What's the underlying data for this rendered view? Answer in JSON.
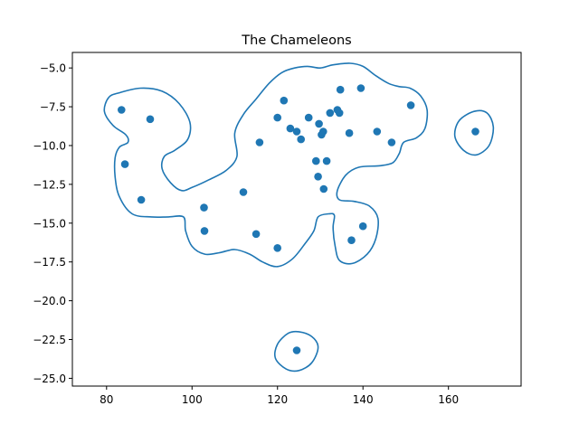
{
  "chart_data": {
    "type": "scatter",
    "title": "The Chameleons",
    "xlabel": "",
    "ylabel": "",
    "xlim": [
      72,
      177
    ],
    "ylim": [
      -25.5,
      -4.0
    ],
    "xticks": [
      80,
      100,
      120,
      140,
      160
    ],
    "yticks": [
      -5.0,
      -7.5,
      -10.0,
      -12.5,
      -15.0,
      -17.5,
      -20.0,
      -22.5,
      -25.0
    ],
    "xtick_labels": [
      "80",
      "100",
      "120",
      "140",
      "160"
    ],
    "ytick_labels": [
      "−5.0",
      "−7.5",
      "−10.0",
      "−12.5",
      "−15.0",
      "−17.5",
      "−20.0",
      "−22.5",
      "−25.0"
    ],
    "grid": false,
    "colors": {
      "points": "#1f77b4",
      "contour": "#1f77b4"
    },
    "points": [
      {
        "x": 83.5,
        "y": -7.7
      },
      {
        "x": 90.2,
        "y": -8.3
      },
      {
        "x": 84.3,
        "y": -11.2
      },
      {
        "x": 88.1,
        "y": -13.5
      },
      {
        "x": 102.8,
        "y": -14.0
      },
      {
        "x": 102.9,
        "y": -15.5
      },
      {
        "x": 112.0,
        "y": -13.0
      },
      {
        "x": 115.0,
        "y": -15.7
      },
      {
        "x": 120.0,
        "y": -16.6
      },
      {
        "x": 115.8,
        "y": -9.8
      },
      {
        "x": 121.5,
        "y": -7.1
      },
      {
        "x": 120.0,
        "y": -8.2
      },
      {
        "x": 123.0,
        "y": -8.9
      },
      {
        "x": 124.5,
        "y": -9.1
      },
      {
        "x": 125.5,
        "y": -9.6
      },
      {
        "x": 127.3,
        "y": -8.2
      },
      {
        "x": 129.0,
        "y": -11.0
      },
      {
        "x": 129.5,
        "y": -12.0
      },
      {
        "x": 129.7,
        "y": -8.6
      },
      {
        "x": 130.3,
        "y": -9.3
      },
      {
        "x": 130.7,
        "y": -9.1
      },
      {
        "x": 130.8,
        "y": -12.8
      },
      {
        "x": 131.5,
        "y": -11.0
      },
      {
        "x": 132.3,
        "y": -7.9
      },
      {
        "x": 134.0,
        "y": -7.7
      },
      {
        "x": 134.5,
        "y": -7.9
      },
      {
        "x": 134.7,
        "y": -6.4
      },
      {
        "x": 136.8,
        "y": -9.2
      },
      {
        "x": 139.5,
        "y": -6.3
      },
      {
        "x": 143.3,
        "y": -9.1
      },
      {
        "x": 146.7,
        "y": -9.8
      },
      {
        "x": 151.2,
        "y": -7.4
      },
      {
        "x": 166.3,
        "y": -9.1
      },
      {
        "x": 137.3,
        "y": -16.1
      },
      {
        "x": 140.0,
        "y": -15.2
      },
      {
        "x": 124.5,
        "y": -23.2
      }
    ],
    "contours": [
      [
        [
          83,
          -6.6
        ],
        [
          88,
          -6.3
        ],
        [
          93,
          -6.5
        ],
        [
          97,
          -7.3
        ],
        [
          99.5,
          -8.5
        ],
        [
          99,
          -9.6
        ],
        [
          96,
          -10.3
        ],
        [
          93.5,
          -10.7
        ],
        [
          93,
          -11.5
        ],
        [
          95,
          -12.4
        ],
        [
          97.5,
          -12.9
        ],
        [
          100,
          -12.7
        ],
        [
          104,
          -12.2
        ],
        [
          108,
          -11.6
        ],
        [
          110.5,
          -10.7
        ],
        [
          110,
          -9.2
        ],
        [
          112,
          -8
        ],
        [
          115,
          -7
        ],
        [
          118,
          -6
        ],
        [
          121,
          -5.3
        ],
        [
          124,
          -5
        ],
        [
          127,
          -4.9
        ],
        [
          130,
          -5
        ],
        [
          133,
          -4.8
        ],
        [
          137,
          -4.7
        ],
        [
          140,
          -4.9
        ],
        [
          143,
          -5.5
        ],
        [
          146,
          -6
        ],
        [
          148.5,
          -6.2
        ],
        [
          151,
          -6.3
        ],
        [
          153.5,
          -6.8
        ],
        [
          155,
          -7.7
        ],
        [
          154.5,
          -8.9
        ],
        [
          152.5,
          -9.5
        ],
        [
          149.5,
          -9.8
        ],
        [
          148.5,
          -10.5
        ],
        [
          147,
          -11.1
        ],
        [
          144,
          -11.3
        ],
        [
          139,
          -11.4
        ],
        [
          136,
          -11.9
        ],
        [
          134,
          -12.9
        ],
        [
          134.5,
          -13.5
        ],
        [
          138,
          -13.6
        ],
        [
          141.5,
          -13.9
        ],
        [
          143.5,
          -14.7
        ],
        [
          143,
          -16
        ],
        [
          141,
          -17
        ],
        [
          137.5,
          -17.6
        ],
        [
          134.5,
          -17.4
        ],
        [
          133.5,
          -16.5
        ],
        [
          133,
          -15.3
        ],
        [
          133.3,
          -14.5
        ],
        [
          132,
          -14.4
        ],
        [
          129.5,
          -14.6
        ],
        [
          128.5,
          -15.5
        ],
        [
          126.5,
          -16.3
        ],
        [
          123.5,
          -17.3
        ],
        [
          120,
          -17.8
        ],
        [
          116.5,
          -17.5
        ],
        [
          113.5,
          -17
        ],
        [
          110,
          -16.7
        ],
        [
          106.5,
          -16.9
        ],
        [
          103,
          -17
        ],
        [
          100,
          -16.5
        ],
        [
          98.5,
          -15.5
        ],
        [
          98,
          -14.6
        ],
        [
          94.5,
          -14.6
        ],
        [
          90.5,
          -14.6
        ],
        [
          86,
          -14.4
        ],
        [
          83,
          -13.3
        ],
        [
          82,
          -12
        ],
        [
          82,
          -10.8
        ],
        [
          83,
          -10.1
        ],
        [
          85,
          -9.8
        ],
        [
          84.5,
          -9.3
        ],
        [
          81.5,
          -8.7
        ],
        [
          79.5,
          -7.8
        ],
        [
          80.5,
          -6.9
        ],
        [
          83,
          -6.6
        ]
      ],
      [
        [
          166,
          -7.8
        ],
        [
          169,
          -7.9
        ],
        [
          170.5,
          -8.8
        ],
        [
          169.5,
          -10
        ],
        [
          166.5,
          -10.6
        ],
        [
          163.5,
          -10.3
        ],
        [
          161.5,
          -9.4
        ],
        [
          162.5,
          -8.4
        ],
        [
          166,
          -7.8
        ]
      ],
      [
        [
          125,
          -22
        ],
        [
          128,
          -22.3
        ],
        [
          129.5,
          -23
        ],
        [
          128,
          -24
        ],
        [
          125,
          -24.5
        ],
        [
          122,
          -24.4
        ],
        [
          119.5,
          -23.7
        ],
        [
          120,
          -22.8
        ],
        [
          122.5,
          -22.1
        ],
        [
          125,
          -22
        ]
      ]
    ]
  }
}
